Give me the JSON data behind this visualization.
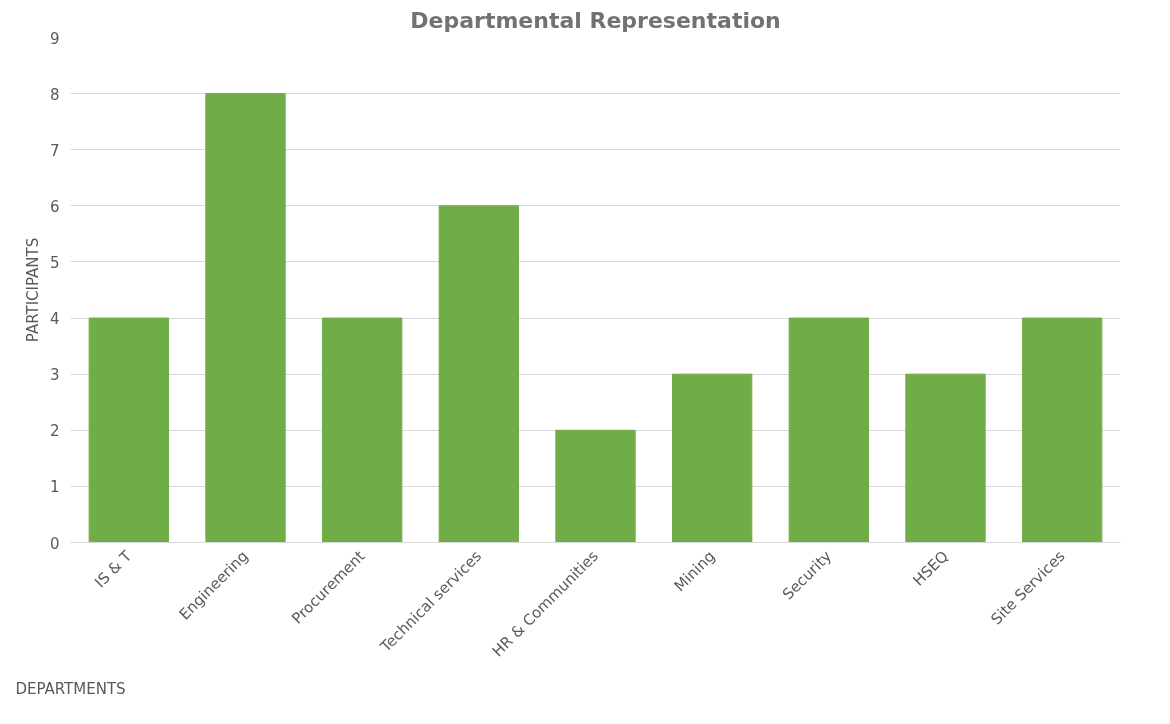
{
  "chart_data": {
    "type": "bar",
    "title": "Departmental Representation",
    "xlabel": "DEPARTMENTS",
    "ylabel": "PARTICIPANTS",
    "categories": [
      "IS & T",
      "Engineering",
      "Procurement",
      "Technical services",
      "HR & Communities",
      "Mining",
      "Security",
      "HSEQ",
      "Site Services"
    ],
    "values": [
      4,
      8,
      4,
      6,
      2,
      3,
      4,
      3,
      4
    ],
    "color": "#70ad47",
    "ylim": [
      0,
      9
    ],
    "yticks": [
      0,
      1,
      2,
      3,
      4,
      5,
      6,
      7,
      8,
      9
    ],
    "grid": "y"
  }
}
